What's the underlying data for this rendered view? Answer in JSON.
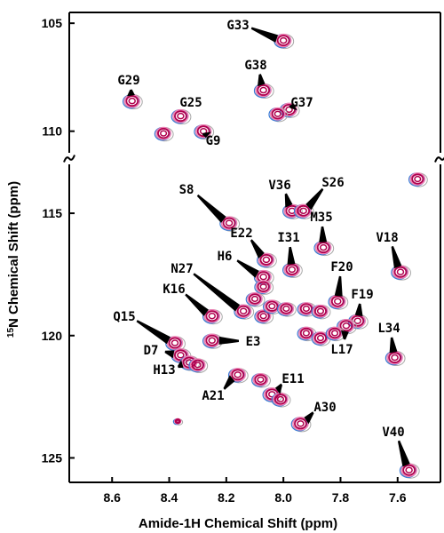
{
  "chart_data": {
    "type": "scatter",
    "title": "",
    "xlabel": "Amide-1H Chemical Shift (ppm)",
    "ylabel_sup": "15",
    "ylabel_main": "N Chemical Shift (ppm)",
    "x_ticks": [
      "8.6",
      "8.4",
      "8.2",
      "8.0",
      "7.8",
      "7.6"
    ],
    "y_ticks_upper": [
      "105",
      "110"
    ],
    "y_ticks_lower": [
      "115",
      "120",
      "125"
    ],
    "x_range": [
      8.75,
      7.45
    ],
    "y_range_upper": [
      104.5,
      111.0
    ],
    "y_range_lower": [
      113.0,
      126.0
    ],
    "axis_break": "between 111 and 113 ppm",
    "x_reversed": true,
    "y_reversed": true,
    "grid": false,
    "contour_colors": [
      "#b0004e",
      "#ee82b4",
      "#3a7bd5",
      "#a8a8a8"
    ],
    "assigned_peaks": [
      {
        "label": "G33",
        "x": 8.0,
        "y": 105.8
      },
      {
        "label": "G38",
        "x": 8.07,
        "y": 108.1
      },
      {
        "label": "G37",
        "x": 7.98,
        "y": 109.0
      },
      {
        "label": "G29",
        "x": 8.53,
        "y": 108.6
      },
      {
        "label": "G25",
        "x": 8.36,
        "y": 109.3
      },
      {
        "label": "G9",
        "x": 8.28,
        "y": 110.0
      },
      {
        "label": "S8",
        "x": 8.19,
        "y": 115.4
      },
      {
        "label": "V36",
        "x": 7.97,
        "y": 114.9
      },
      {
        "label": "S26",
        "x": 7.93,
        "y": 114.9
      },
      {
        "label": "E22",
        "x": 8.06,
        "y": 116.9
      },
      {
        "label": "M35",
        "x": 7.86,
        "y": 116.4
      },
      {
        "label": "H6",
        "x": 8.07,
        "y": 117.6
      },
      {
        "label": "I31",
        "x": 7.97,
        "y": 117.3
      },
      {
        "label": "V18",
        "x": 7.59,
        "y": 117.4
      },
      {
        "label": "N27",
        "x": 8.14,
        "y": 119.0
      },
      {
        "label": "F20",
        "x": 7.81,
        "y": 118.6
      },
      {
        "label": "K16",
        "x": 8.25,
        "y": 119.2
      },
      {
        "label": "F19",
        "x": 7.74,
        "y": 119.4
      },
      {
        "label": "Q15",
        "x": 8.38,
        "y": 120.3
      },
      {
        "label": "L17",
        "x": 7.78,
        "y": 119.6
      },
      {
        "label": "E3",
        "x": 8.25,
        "y": 120.2
      },
      {
        "label": "L34",
        "x": 7.61,
        "y": 120.9
      },
      {
        "label": "D7",
        "x": 8.36,
        "y": 120.8
      },
      {
        "label": "H13",
        "x": 8.33,
        "y": 121.1
      },
      {
        "label": "A21",
        "x": 8.16,
        "y": 121.6
      },
      {
        "label": "E11",
        "x": 8.04,
        "y": 122.4
      },
      {
        "label": "A30",
        "x": 7.94,
        "y": 123.6
      },
      {
        "label": "V40",
        "x": 7.56,
        "y": 125.5
      }
    ],
    "unlabeled_peaks": [
      {
        "x": 7.53,
        "y": 113.6
      },
      {
        "x": 8.07,
        "y": 118.0
      },
      {
        "x": 8.1,
        "y": 118.5
      },
      {
        "x": 8.07,
        "y": 119.2
      },
      {
        "x": 8.04,
        "y": 118.8
      },
      {
        "x": 7.99,
        "y": 118.9
      },
      {
        "x": 7.92,
        "y": 118.9
      },
      {
        "x": 7.87,
        "y": 119.0
      },
      {
        "x": 7.92,
        "y": 119.9
      },
      {
        "x": 7.87,
        "y": 120.1
      },
      {
        "x": 7.82,
        "y": 119.9
      },
      {
        "x": 8.3,
        "y": 121.2
      },
      {
        "x": 8.08,
        "y": 121.8
      },
      {
        "x": 8.01,
        "y": 122.6
      },
      {
        "x": 8.42,
        "y": 110.1
      },
      {
        "x": 8.02,
        "y": 109.2
      },
      {
        "x": 8.37,
        "y": 123.5
      }
    ]
  }
}
